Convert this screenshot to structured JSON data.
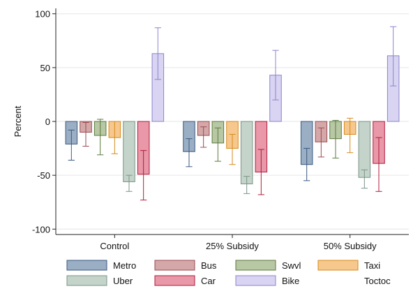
{
  "chart_data": {
    "type": "bar",
    "title": "",
    "xlabel": "",
    "ylabel": "Percent",
    "ylim": [
      -105,
      105
    ],
    "yticks": [
      -100,
      -50,
      0,
      50,
      100
    ],
    "grid": true,
    "legend_position": "bottom",
    "categories": [
      "Control",
      "25% Subsidy",
      "50% Subsidy"
    ],
    "series": [
      {
        "name": "Metro",
        "color": "#9aaec4",
        "edge": "#3a5a80",
        "values": [
          -21,
          -28,
          -40
        ],
        "ci_low": [
          -36,
          -42,
          -55
        ],
        "ci_high": [
          -8,
          -16,
          -25
        ]
      },
      {
        "name": "Bus",
        "color": "#d4a8a8",
        "edge": "#9a4a52",
        "values": [
          -10,
          -13,
          -19
        ],
        "ci_low": [
          -23,
          -24,
          -33
        ],
        "ci_high": [
          -1,
          -5,
          -6
        ]
      },
      {
        "name": "Swvl",
        "color": "#b8c8a4",
        "edge": "#5a7a3e",
        "values": [
          -13,
          -20,
          -16
        ],
        "ci_low": [
          -31,
          -37,
          -34
        ],
        "ci_high": [
          2,
          -6,
          1
        ]
      },
      {
        "name": "Taxi",
        "color": "#f6c88e",
        "edge": "#d68a1c",
        "values": [
          -15,
          -25,
          -12
        ],
        "ci_low": [
          -30,
          -40,
          -29
        ],
        "ci_high": [
          0,
          -12,
          3
        ]
      },
      {
        "name": "Uber",
        "color": "#c4d4ca",
        "edge": "#7a9486",
        "values": [
          -56,
          -58,
          -52
        ],
        "ci_low": [
          -65,
          -67,
          -62
        ],
        "ci_high": [
          -50,
          -51,
          -45
        ]
      },
      {
        "name": "Car",
        "color": "#e898a8",
        "edge": "#b01c3c",
        "values": [
          -49,
          -47,
          -39
        ],
        "ci_low": [
          -73,
          -68,
          -65
        ],
        "ci_high": [
          -27,
          -26,
          -15
        ]
      },
      {
        "name": "Bike",
        "color": "#d8d4f2",
        "edge": "#8c84cc",
        "values": [
          63,
          43,
          61
        ],
        "ci_low": [
          39,
          20,
          33
        ],
        "ci_high": [
          87,
          66,
          88
        ]
      },
      {
        "name": "Toctoc",
        "color": "",
        "edge": "",
        "values": [
          null,
          null,
          null
        ],
        "ci_low": [
          null,
          null,
          null
        ],
        "ci_high": [
          null,
          null,
          null
        ]
      }
    ]
  }
}
